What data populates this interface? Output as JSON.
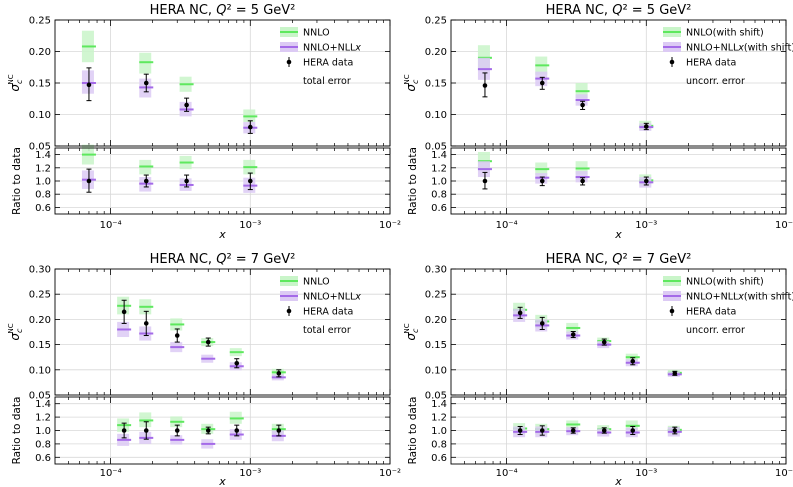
{
  "colors": {
    "nnlo": "#5ee85e",
    "nnlo_band": "#c9f5c9",
    "nnll": "#a46ae8",
    "nnll_band": "#dccaf4",
    "data": "#000000",
    "grid": "#d8d8d8"
  },
  "chart_data": [
    {
      "id": "p1",
      "type": "scatter",
      "title": "HERA NC, Q² = 5 GeV²",
      "ylabel": "σ_c^NC",
      "ratio_ylabel": "Ratio to data",
      "xlabel": "x",
      "xscale": "log",
      "xlim": [
        4e-05,
        0.01
      ],
      "ylim": [
        0.05,
        0.25
      ],
      "ratio_ylim": [
        0.5,
        1.5
      ],
      "yticks": [
        "0.05",
        "0.10",
        "0.15",
        "0.20",
        "0.25"
      ],
      "ratio_yticks": [
        "0.6",
        "0.8",
        "1.0",
        "1.2",
        "1.4"
      ],
      "xticks": [
        {
          "value": 0.0001,
          "label": "10⁻⁴"
        },
        {
          "value": 0.001,
          "label": "10⁻³"
        },
        {
          "value": 0.01,
          "label": "10⁻²"
        }
      ],
      "legend": {
        "position": "top-right",
        "entries": [
          "NNLO",
          "NNLO+NLLx",
          "HERA data"
        ]
      },
      "annotation": "total error",
      "x": [
        7e-05,
        0.00018,
        0.00035,
        0.001
      ],
      "series": [
        {
          "name": "NNLO",
          "values": [
            0.208,
            0.183,
            0.148,
            0.097
          ],
          "band_low": [
            0.183,
            0.165,
            0.136,
            0.088
          ],
          "band_high": [
            0.233,
            0.198,
            0.16,
            0.108
          ]
        },
        {
          "name": "NNLO+NLLx",
          "values": [
            0.15,
            0.143,
            0.108,
            0.079
          ],
          "band_low": [
            0.133,
            0.127,
            0.097,
            0.07
          ],
          "band_high": [
            0.17,
            0.157,
            0.12,
            0.088
          ]
        },
        {
          "name": "HERA data",
          "values": [
            0.147,
            0.15,
            0.115,
            0.08
          ],
          "err_low": [
            0.122,
            0.136,
            0.105,
            0.07
          ],
          "err_high": [
            0.174,
            0.164,
            0.126,
            0.09
          ]
        }
      ],
      "ratio": [
        {
          "name": "NNLO",
          "values": [
            1.4,
            1.22,
            1.28,
            1.21
          ],
          "band_low": [
            1.25,
            1.1,
            1.18,
            1.1
          ],
          "band_high": [
            1.55,
            1.32,
            1.38,
            1.32
          ]
        },
        {
          "name": "NNLO+NLLx",
          "values": [
            1.02,
            0.96,
            0.94,
            0.93
          ],
          "band_low": [
            0.88,
            0.84,
            0.85,
            0.82
          ],
          "band_high": [
            1.16,
            1.06,
            1.04,
            1.05
          ]
        },
        {
          "name": "HERA data",
          "values": [
            1.0,
            1.0,
            1.0,
            1.0
          ],
          "err_low": [
            0.83,
            0.91,
            0.91,
            0.87
          ],
          "err_high": [
            1.18,
            1.09,
            1.09,
            1.12
          ]
        }
      ]
    },
    {
      "id": "p2",
      "type": "scatter",
      "title": "HERA NC, Q² = 5 GeV²",
      "ylabel": "σ_c^NC",
      "ratio_ylabel": "Ratio to data",
      "xlabel": "x",
      "xscale": "log",
      "xlim": [
        4e-05,
        0.01
      ],
      "ylim": [
        0.05,
        0.25
      ],
      "ratio_ylim": [
        0.5,
        1.5
      ],
      "yticks": [
        "0.05",
        "0.10",
        "0.15",
        "0.20",
        "0.25"
      ],
      "ratio_yticks": [
        "0.6",
        "0.8",
        "1.0",
        "1.2",
        "1.4"
      ],
      "xticks": [
        {
          "value": 0.0001,
          "label": "10⁻⁴"
        },
        {
          "value": 0.001,
          "label": "10⁻³"
        },
        {
          "value": 0.01,
          "label": "10⁻²"
        }
      ],
      "legend": {
        "position": "top-right",
        "entries": [
          "NNLO(with shift)",
          "NNLO+NLLx(with shift)",
          "HERA data"
        ]
      },
      "annotation": "uncorr. error",
      "x": [
        7e-05,
        0.00018,
        0.00035,
        0.001
      ],
      "series": [
        {
          "name": "NNLO(with shift)",
          "values": [
            0.19,
            0.178,
            0.137,
            0.082
          ],
          "band_low": [
            0.17,
            0.163,
            0.126,
            0.075
          ],
          "band_high": [
            0.21,
            0.192,
            0.15,
            0.09
          ]
        },
        {
          "name": "NNLO+NLLx(with shift)",
          "values": [
            0.172,
            0.157,
            0.123,
            0.08
          ],
          "band_low": [
            0.155,
            0.145,
            0.114,
            0.074
          ],
          "band_high": [
            0.19,
            0.168,
            0.132,
            0.086
          ]
        },
        {
          "name": "HERA data",
          "values": [
            0.146,
            0.15,
            0.115,
            0.081
          ],
          "err_low": [
            0.128,
            0.14,
            0.108,
            0.076
          ],
          "err_high": [
            0.166,
            0.159,
            0.121,
            0.086
          ]
        }
      ],
      "ratio": [
        {
          "name": "NNLO(with shift)",
          "values": [
            1.3,
            1.18,
            1.19,
            1.01
          ],
          "band_low": [
            1.16,
            1.09,
            1.1,
            0.93
          ],
          "band_high": [
            1.44,
            1.28,
            1.3,
            1.1
          ]
        },
        {
          "name": "NNLO+NLLx(with shift)",
          "values": [
            1.18,
            1.05,
            1.06,
            0.98
          ],
          "band_low": [
            1.06,
            0.96,
            0.98,
            0.9
          ],
          "band_high": [
            1.3,
            1.12,
            1.15,
            1.06
          ]
        },
        {
          "name": "HERA data",
          "values": [
            1.0,
            1.0,
            1.0,
            1.0
          ],
          "err_low": [
            0.88,
            0.93,
            0.94,
            0.94
          ],
          "err_high": [
            1.13,
            1.06,
            1.05,
            1.06
          ]
        }
      ]
    },
    {
      "id": "p3",
      "type": "scatter",
      "title": "HERA NC, Q² = 7 GeV²",
      "ylabel": "σ_c^NC",
      "ratio_ylabel": "Ratio to data",
      "xlabel": "x",
      "xscale": "log",
      "xlim": [
        4e-05,
        0.01
      ],
      "ylim": [
        0.05,
        0.3
      ],
      "ratio_ylim": [
        0.5,
        1.5
      ],
      "yticks": [
        "0.05",
        "0.10",
        "0.15",
        "0.20",
        "0.25",
        "0.30"
      ],
      "ratio_yticks": [
        "0.6",
        "0.8",
        "1.0",
        "1.2",
        "1.4"
      ],
      "xticks": [
        {
          "value": 0.0001,
          "label": "10⁻⁴"
        },
        {
          "value": 0.001,
          "label": "10⁻³"
        },
        {
          "value": 0.01,
          "label": "10⁻²"
        }
      ],
      "legend": {
        "position": "top-right",
        "entries": [
          "NNLO",
          "NNLO+NLLx",
          "HERA data"
        ]
      },
      "annotation": "total error",
      "x": [
        0.000125,
        0.00018,
        0.0003,
        0.0005,
        0.0008,
        0.0016
      ],
      "series": [
        {
          "name": "NNLO",
          "values": [
            0.227,
            0.225,
            0.19,
            0.155,
            0.135,
            0.095
          ],
          "band_low": [
            0.21,
            0.21,
            0.178,
            0.147,
            0.127,
            0.088
          ],
          "band_high": [
            0.245,
            0.24,
            0.202,
            0.163,
            0.143,
            0.102
          ]
        },
        {
          "name": "NNLO+NLLx",
          "values": [
            0.18,
            0.172,
            0.145,
            0.122,
            0.107,
            0.085
          ],
          "band_low": [
            0.165,
            0.158,
            0.135,
            0.114,
            0.099,
            0.079
          ],
          "band_high": [
            0.195,
            0.186,
            0.155,
            0.13,
            0.115,
            0.091
          ]
        },
        {
          "name": "HERA data",
          "values": [
            0.215,
            0.192,
            0.168,
            0.155,
            0.113,
            0.093
          ],
          "err_low": [
            0.192,
            0.168,
            0.155,
            0.147,
            0.104,
            0.086
          ],
          "err_high": [
            0.238,
            0.216,
            0.181,
            0.163,
            0.122,
            0.1
          ]
        }
      ],
      "ratio": [
        {
          "name": "NNLO",
          "values": [
            1.08,
            1.15,
            1.13,
            1.02,
            1.18,
            1.02
          ],
          "band_low": [
            0.98,
            1.05,
            1.05,
            0.95,
            1.1,
            0.95
          ],
          "band_high": [
            1.18,
            1.27,
            1.21,
            1.1,
            1.28,
            1.1
          ]
        },
        {
          "name": "NNLO+NLLx",
          "values": [
            0.86,
            0.89,
            0.86,
            0.8,
            0.94,
            0.92
          ],
          "band_low": [
            0.77,
            0.8,
            0.79,
            0.73,
            0.86,
            0.84
          ],
          "band_high": [
            0.95,
            0.98,
            0.93,
            0.87,
            1.02,
            1.0
          ]
        },
        {
          "name": "HERA data",
          "values": [
            1.0,
            1.0,
            1.0,
            1.0,
            1.0,
            1.0
          ],
          "err_low": [
            0.89,
            0.87,
            0.92,
            0.95,
            0.92,
            0.92
          ],
          "err_high": [
            1.11,
            1.13,
            1.08,
            1.05,
            1.08,
            1.08
          ]
        }
      ]
    },
    {
      "id": "p4",
      "type": "scatter",
      "title": "HERA NC, Q² = 7 GeV²",
      "ylabel": "σ_c^NC",
      "ratio_ylabel": "Ratio to data",
      "xlabel": "x",
      "xscale": "log",
      "xlim": [
        4e-05,
        0.01
      ],
      "ylim": [
        0.05,
        0.3
      ],
      "ratio_ylim": [
        0.5,
        1.5
      ],
      "yticks": [
        "0.05",
        "0.10",
        "0.15",
        "0.20",
        "0.25",
        "0.30"
      ],
      "ratio_yticks": [
        "0.6",
        "0.8",
        "1.0",
        "1.2",
        "1.4"
      ],
      "xticks": [
        {
          "value": 0.0001,
          "label": "10⁻⁴"
        },
        {
          "value": 0.001,
          "label": "10⁻³"
        },
        {
          "value": 0.01,
          "label": "10⁻²"
        }
      ],
      "legend": {
        "position": "top-right",
        "entries": [
          "NNLO(with shift)",
          "NNLO+NLLx(with shift)",
          "HERA data"
        ]
      },
      "annotation": "uncorr. error",
      "x": [
        0.000125,
        0.00018,
        0.0003,
        0.0005,
        0.0008,
        0.0016
      ],
      "series": [
        {
          "name": "NNLO(with shift)",
          "values": [
            0.219,
            0.196,
            0.183,
            0.157,
            0.125,
            0.094
          ],
          "band_low": [
            0.205,
            0.183,
            0.173,
            0.15,
            0.118,
            0.088
          ],
          "band_high": [
            0.233,
            0.209,
            0.193,
            0.164,
            0.132,
            0.1
          ]
        },
        {
          "name": "NNLO+NLLx(with shift)",
          "values": [
            0.208,
            0.188,
            0.168,
            0.15,
            0.114,
            0.091
          ],
          "band_low": [
            0.195,
            0.176,
            0.16,
            0.143,
            0.107,
            0.086
          ],
          "band_high": [
            0.221,
            0.2,
            0.176,
            0.157,
            0.121,
            0.096
          ]
        },
        {
          "name": "HERA data",
          "values": [
            0.213,
            0.192,
            0.17,
            0.155,
            0.117,
            0.093
          ],
          "err_low": [
            0.202,
            0.18,
            0.164,
            0.149,
            0.11,
            0.089
          ],
          "err_high": [
            0.224,
            0.204,
            0.176,
            0.161,
            0.124,
            0.097
          ]
        }
      ],
      "ratio": [
        {
          "name": "NNLO(with shift)",
          "values": [
            1.03,
            1.02,
            1.09,
            1.02,
            1.07,
            1.01
          ],
          "band_low": [
            0.95,
            0.94,
            1.01,
            0.96,
            0.99,
            0.95
          ],
          "band_high": [
            1.11,
            1.1,
            1.15,
            1.08,
            1.15,
            1.07
          ]
        },
        {
          "name": "NNLO+NLLx(with shift)",
          "values": [
            0.98,
            0.98,
            0.99,
            0.97,
            0.97,
            0.98
          ],
          "band_low": [
            0.9,
            0.9,
            0.93,
            0.91,
            0.9,
            0.91
          ],
          "band_high": [
            1.06,
            1.06,
            1.05,
            1.03,
            1.04,
            1.05
          ]
        },
        {
          "name": "HERA data",
          "values": [
            1.0,
            1.0,
            1.0,
            1.0,
            1.0,
            1.0
          ],
          "err_low": [
            0.94,
            0.93,
            0.96,
            0.96,
            0.94,
            0.95
          ],
          "err_high": [
            1.06,
            1.07,
            1.04,
            1.04,
            1.06,
            1.05
          ]
        }
      ]
    }
  ]
}
